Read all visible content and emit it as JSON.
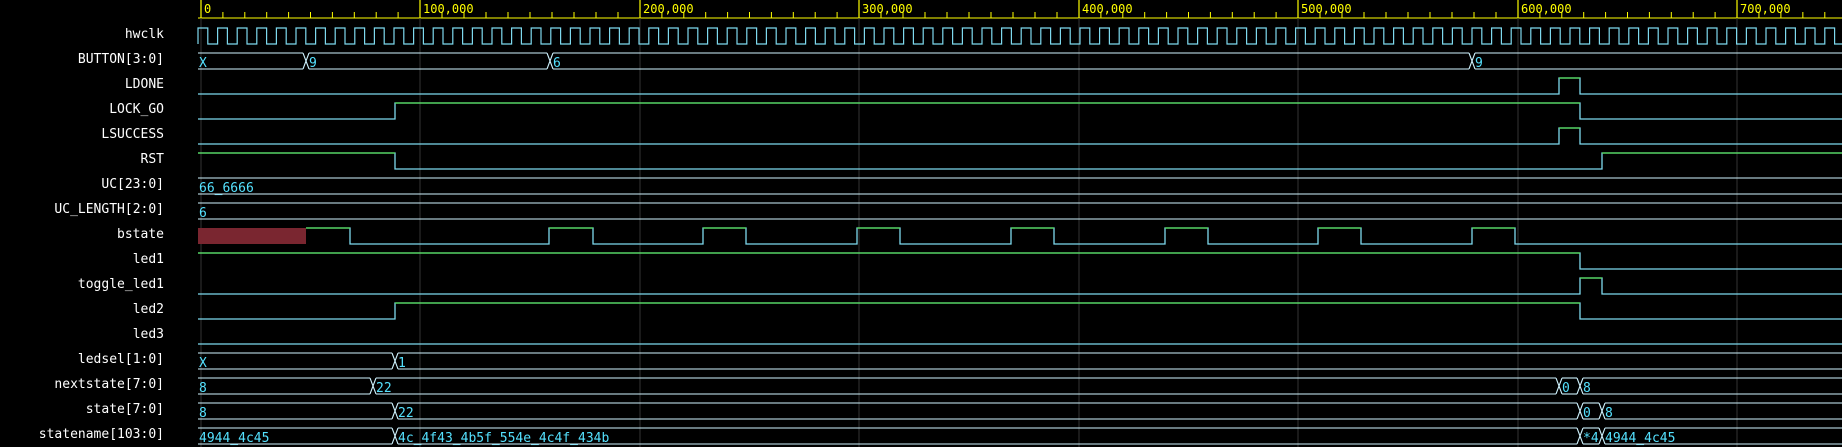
{
  "colors": {
    "background": "#000000",
    "ruler": "#ffff00",
    "grid": "#333333",
    "wave_low": "#7ed9ee",
    "wave_high": "#55dd55",
    "bus": "#d0f4ff",
    "value_text": "#55e2ff",
    "undefined_fill": "#7a2630"
  },
  "ruler_labels": [
    "0",
    "100,000",
    "200,000",
    "300,000",
    "400,000",
    "500,000",
    "600,000",
    "700,000"
  ],
  "signals": [
    {
      "name": "hwclk",
      "type": "clock"
    },
    {
      "name": "BUTTON[3:0]",
      "type": "bus",
      "values": [
        "X",
        "9",
        "6",
        "9"
      ]
    },
    {
      "name": "LDONE",
      "type": "bit"
    },
    {
      "name": "LOCK_GO",
      "type": "bit"
    },
    {
      "name": "LSUCCESS",
      "type": "bit"
    },
    {
      "name": "RST",
      "type": "bit"
    },
    {
      "name": "UC[23:0]",
      "type": "bus",
      "values": [
        "66_6666"
      ]
    },
    {
      "name": "UC_LENGTH[2:0]",
      "type": "bus",
      "values": [
        "6"
      ]
    },
    {
      "name": "bstate",
      "type": "bit"
    },
    {
      "name": "led1",
      "type": "bit"
    },
    {
      "name": "toggle_led1",
      "type": "bit"
    },
    {
      "name": "led2",
      "type": "bit"
    },
    {
      "name": "led3",
      "type": "bit"
    },
    {
      "name": "ledsel[1:0]",
      "type": "bus",
      "values": [
        "X",
        "1"
      ]
    },
    {
      "name": "nextstate[7:0]",
      "type": "bus",
      "values": [
        "8",
        "22",
        "0",
        "8"
      ]
    },
    {
      "name": "state[7:0]",
      "type": "bus",
      "values": [
        "8",
        "22",
        "0",
        "8"
      ]
    },
    {
      "name": "statename[103:0]",
      "type": "bus",
      "values": [
        "4944_4c45",
        "4c_4f43_4b5f_554e_4c4f_434b",
        "*4",
        "4944_4c45"
      ]
    }
  ]
}
